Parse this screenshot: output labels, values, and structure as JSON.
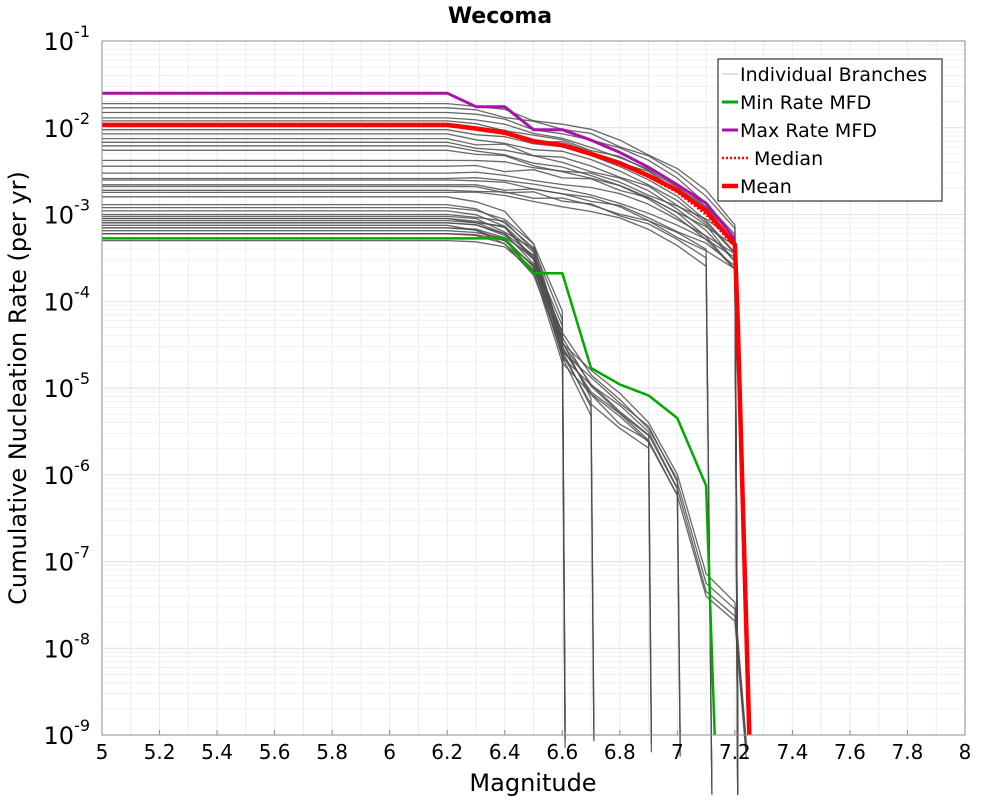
{
  "chart_data": {
    "type": "line",
    "title": "Wecoma",
    "xlabel": "Magnitude",
    "ylabel": "Cumulative Nucleation Rate (per yr)",
    "xlim": [
      5,
      8
    ],
    "ylim": [
      1e-09,
      0.1
    ],
    "yscale": "log",
    "grid": true,
    "legend_position": "top-right",
    "x_ticks": [
      "5",
      "5.2",
      "5.4",
      "5.6",
      "5.8",
      "6",
      "6.2",
      "6.4",
      "6.6",
      "6.8",
      "7",
      "7.2",
      "7.4",
      "7.6",
      "7.8",
      "8"
    ],
    "y_ticks": [
      {
        "base": "10",
        "exp": "-1",
        "value": 0.1
      },
      {
        "base": "10",
        "exp": "-2",
        "value": 0.01
      },
      {
        "base": "10",
        "exp": "-3",
        "value": 0.001
      },
      {
        "base": "10",
        "exp": "-4",
        "value": 0.0001
      },
      {
        "base": "10",
        "exp": "-5",
        "value": 1e-05
      },
      {
        "base": "10",
        "exp": "-6",
        "value": 1e-06
      },
      {
        "base": "10",
        "exp": "-7",
        "value": 1e-07
      },
      {
        "base": "10",
        "exp": "-8",
        "value": 1e-08
      },
      {
        "base": "10",
        "exp": "-9",
        "value": 1e-09
      }
    ],
    "branch_families": [
      {
        "family": "standard",
        "base_rates": [
          0.019,
          0.017,
          0.015,
          0.013,
          0.012,
          0.011,
          0.0095,
          0.0085,
          0.0075,
          0.0068,
          0.0062,
          0.0055
        ],
        "x": [
          5,
          6.2,
          6.3,
          6.4,
          6.5,
          6.6,
          6.7,
          6.8,
          6.9,
          7.0,
          7.1,
          7.2,
          7.21
        ],
        "shape": [
          1,
          1,
          0.9,
          0.82,
          0.66,
          0.6,
          0.48,
          0.37,
          0.27,
          0.18,
          0.095,
          0.04,
          1e-07
        ]
      },
      {
        "family": "moderate",
        "base_rates": [
          0.0042,
          0.0036,
          0.003,
          0.0026,
          0.0022,
          0.0019
        ],
        "x": [
          5,
          6.2,
          6.3,
          6.4,
          6.5,
          6.6,
          6.7,
          6.8,
          6.9,
          7.0,
          7.1,
          7.2,
          7.21
        ],
        "shape": [
          1,
          1,
          0.97,
          0.92,
          0.86,
          0.78,
          0.68,
          0.55,
          0.42,
          0.3,
          0.2,
          0.12,
          1e-08
        ]
      },
      {
        "family": "low_drop_6.6",
        "base_rates": [
          0.0016,
          0.0013,
          0.0011,
          0.0009,
          0.00075
        ],
        "x": [
          5,
          6.2,
          6.3,
          6.4,
          6.5,
          6.6,
          6.61
        ],
        "shape": [
          1,
          1,
          0.85,
          0.65,
          0.3,
          0.05,
          1e-06
        ]
      },
      {
        "family": "low_drop_6.7",
        "base_rates": [
          0.0012,
          0.00095,
          0.0008
        ],
        "x": [
          5,
          6.2,
          6.3,
          6.4,
          6.5,
          6.6,
          6.7,
          6.71
        ],
        "shape": [
          1,
          1,
          0.9,
          0.7,
          0.4,
          0.03,
          0.006,
          1e-06
        ]
      },
      {
        "family": "low_drop_6.9",
        "base_rates": [
          0.001,
          0.0008,
          0.00065
        ],
        "x": [
          5,
          6.2,
          6.3,
          6.4,
          6.5,
          6.6,
          6.7,
          6.8,
          6.9,
          6.91
        ],
        "shape": [
          1,
          1,
          0.9,
          0.8,
          0.4,
          0.04,
          0.01,
          0.005,
          0.003,
          1e-06
        ]
      },
      {
        "family": "low_drop_7.0",
        "base_rates": [
          0.0009,
          0.0007,
          0.0006
        ],
        "x": [
          5,
          6.2,
          6.3,
          6.4,
          6.5,
          6.6,
          6.7,
          6.8,
          6.9,
          7.0,
          7.01
        ],
        "shape": [
          1,
          1,
          0.9,
          0.75,
          0.35,
          0.05,
          0.015,
          0.008,
          0.004,
          0.001,
          1e-06
        ]
      },
      {
        "family": "long_tail",
        "base_rates": [
          0.00085,
          0.0007,
          0.0006,
          0.0005
        ],
        "x": [
          5,
          6.2,
          6.3,
          6.4,
          6.5,
          6.6,
          6.7,
          6.8,
          6.9,
          7.0,
          7.1,
          7.2,
          7.24
        ],
        "shape": [
          1,
          1,
          0.92,
          0.82,
          0.45,
          0.04,
          0.018,
          0.01,
          0.005,
          0.0012,
          8e-05,
          4e-05,
          1e-06
        ]
      },
      {
        "family": "mid_drop_7.1",
        "base_rates": [
          0.0025,
          0.0021,
          0.0018
        ],
        "x": [
          5,
          6.2,
          6.3,
          6.4,
          6.5,
          6.6,
          6.7,
          6.8,
          6.9,
          7.0,
          7.1,
          7.12
        ],
        "shape": [
          1,
          1,
          0.95,
          0.9,
          0.82,
          0.72,
          0.6,
          0.48,
          0.36,
          0.25,
          0.15,
          1e-07
        ]
      }
    ],
    "series": [
      {
        "name": "Min Rate MFD",
        "color": "#00aa00",
        "x": [
          5,
          6.2,
          6.3,
          6.4,
          6.5,
          6.6,
          6.7,
          6.8,
          6.9,
          7.0,
          7.1,
          7.13
        ],
        "y": [
          0.00053,
          0.00053,
          0.00053,
          0.00053,
          0.00021,
          0.00021,
          1.7e-05,
          1.1e-05,
          8.2e-06,
          4.5e-06,
          7.5e-07,
          1e-09
        ]
      },
      {
        "name": "Max Rate MFD",
        "color": "#aa11aa",
        "x": [
          5,
          6.2,
          6.3,
          6.4,
          6.5,
          6.6,
          6.7,
          6.8,
          6.9,
          7.0,
          7.1,
          7.2
        ],
        "y": [
          0.025,
          0.025,
          0.0175,
          0.0175,
          0.0095,
          0.0095,
          0.0072,
          0.0052,
          0.0035,
          0.0022,
          0.00135,
          0.00052
        ]
      },
      {
        "name": "Median",
        "color": "#ff0000",
        "x": [
          5,
          6.2,
          6.3,
          6.4,
          6.5,
          6.6,
          6.7,
          6.8,
          6.9,
          7.0,
          7.1,
          7.2,
          7.21
        ],
        "y": [
          0.0105,
          0.0105,
          0.0095,
          0.0085,
          0.0068,
          0.0062,
          0.0049,
          0.0038,
          0.0027,
          0.0018,
          0.001,
          0.00042,
          6e-05
        ]
      },
      {
        "name": "Mean",
        "color": "#ff0000",
        "x": [
          5,
          6.2,
          6.3,
          6.4,
          6.5,
          6.6,
          6.7,
          6.8,
          6.9,
          7.0,
          7.1,
          7.2,
          7.21,
          7.25
        ],
        "y": [
          0.0108,
          0.0108,
          0.0098,
          0.0088,
          0.007,
          0.0063,
          0.005,
          0.0039,
          0.0028,
          0.0019,
          0.0011,
          0.00045,
          6e-05,
          1e-09
        ]
      }
    ],
    "legend": {
      "items": [
        {
          "label": "Individual Branches",
          "color": "#c0c0c0",
          "style": "thin"
        },
        {
          "label": "Min Rate MFD",
          "color": "#00aa00",
          "style": "solid"
        },
        {
          "label": "Max Rate MFD",
          "color": "#aa11aa",
          "style": "solid"
        },
        {
          "label": "Median",
          "color": "#ff0000",
          "style": "dotted"
        },
        {
          "label": "Mean",
          "color": "#ff0000",
          "style": "thick"
        }
      ]
    }
  }
}
